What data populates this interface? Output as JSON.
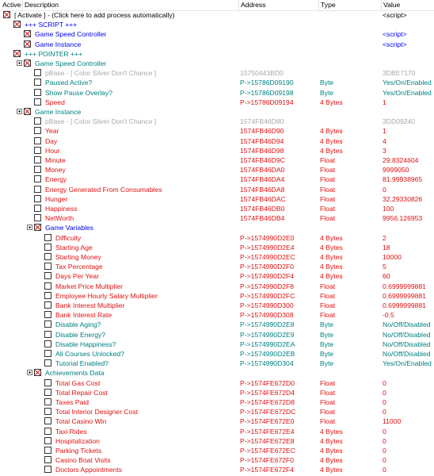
{
  "header": {
    "active": "Active",
    "description": "Description",
    "address": "Address",
    "type": "Type",
    "value": "Value"
  },
  "colors": {
    "red": "#e01010",
    "blue": "#0000ee",
    "teal": "#008080",
    "gray": "#a8a8a8",
    "black": "#000000"
  },
  "rows": [
    {
      "indent": 0,
      "checked": true,
      "expander": false,
      "desc": "[ Activate ] - (Click here to add process automatically)",
      "addr": "",
      "type": "",
      "value": "<script>",
      "color": "black"
    },
    {
      "indent": 1,
      "checked": true,
      "expander": false,
      "desc": "+++ SCRIPT +++",
      "addr": "",
      "type": "",
      "value": "",
      "color": "blue"
    },
    {
      "indent": 2,
      "checked": true,
      "expander": false,
      "desc": "Game Speed Controller",
      "addr": "",
      "type": "",
      "value": "<script>",
      "color": "blue"
    },
    {
      "indent": 2,
      "checked": true,
      "expander": false,
      "desc": "Game Instance",
      "addr": "",
      "type": "",
      "value": "<script>",
      "color": "blue"
    },
    {
      "indent": 1,
      "checked": true,
      "expander": false,
      "desc": "+++ POINTER +++",
      "addr": "",
      "type": "",
      "value": "",
      "color": "teal"
    },
    {
      "indent": 2,
      "checked": true,
      "expander": true,
      "desc": "Game Speed Controller",
      "addr": "",
      "type": "",
      "value": "",
      "color": "teal"
    },
    {
      "indent": 3,
      "checked": false,
      "expander": false,
      "desc": "pBase - [ Color Silver Don't Chance ]",
      "addr": "15750443BD0",
      "type": "",
      "value": "3DBE7170",
      "color": "gray"
    },
    {
      "indent": 3,
      "checked": false,
      "expander": false,
      "desc": "Paused Active?",
      "addr": "P->15786D09190",
      "type": "Byte",
      "value": "Yes/On/Enabled",
      "color": "teal"
    },
    {
      "indent": 3,
      "checked": false,
      "expander": false,
      "desc": "Show Pause Overlay?",
      "addr": "P->15786D09198",
      "type": "Byte",
      "value": "Yes/On/Enabled",
      "color": "teal"
    },
    {
      "indent": 3,
      "checked": false,
      "expander": false,
      "desc": "Speed",
      "addr": "P->15786D09194",
      "type": "4 Bytes",
      "value": "1",
      "color": "red"
    },
    {
      "indent": 2,
      "checked": true,
      "expander": true,
      "desc": "Game Instance",
      "addr": "",
      "type": "",
      "value": "",
      "color": "teal"
    },
    {
      "indent": 3,
      "checked": false,
      "expander": false,
      "desc": "pBase - [ Color Silver Don't Chance ]",
      "addr": "1574FB46D80",
      "type": "",
      "value": "3DD09240",
      "color": "gray"
    },
    {
      "indent": 3,
      "checked": false,
      "expander": false,
      "desc": "Year",
      "addr": "1574FB46D90",
      "type": "4 Bytes",
      "value": "1",
      "color": "red"
    },
    {
      "indent": 3,
      "checked": false,
      "expander": false,
      "desc": "Day",
      "addr": "1574FB46D94",
      "type": "4 Bytes",
      "value": "4",
      "color": "red"
    },
    {
      "indent": 3,
      "checked": false,
      "expander": false,
      "desc": "Hour",
      "addr": "1574FB46D98",
      "type": "4 Bytes",
      "value": "3",
      "color": "red"
    },
    {
      "indent": 3,
      "checked": false,
      "expander": false,
      "desc": "Minute",
      "addr": "1574FB46D9C",
      "type": "Float",
      "value": "29.8324604",
      "color": "red"
    },
    {
      "indent": 3,
      "checked": false,
      "expander": false,
      "desc": "Money",
      "addr": "1574FB46DA0",
      "type": "Float",
      "value": "9999050",
      "color": "red"
    },
    {
      "indent": 3,
      "checked": false,
      "expander": false,
      "desc": "Energy",
      "addr": "1574FB46DA4",
      "type": "Float",
      "value": "81.99938965",
      "color": "red"
    },
    {
      "indent": 3,
      "checked": false,
      "expander": false,
      "desc": "Energy Generated From Consumables",
      "addr": "1574FB46DA8",
      "type": "Float",
      "value": "0",
      "color": "red"
    },
    {
      "indent": 3,
      "checked": false,
      "expander": false,
      "desc": "Hunger",
      "addr": "1574FB46DAC",
      "type": "Float",
      "value": "32.29330826",
      "color": "red"
    },
    {
      "indent": 3,
      "checked": false,
      "expander": false,
      "desc": "Happiness",
      "addr": "1574FB46DB0",
      "type": "Float",
      "value": "100",
      "color": "red"
    },
    {
      "indent": 3,
      "checked": false,
      "expander": false,
      "desc": "NetWorth",
      "addr": "1574FB46DB4",
      "type": "Float",
      "value": "9956.126953",
      "color": "red"
    },
    {
      "indent": 3,
      "checked": true,
      "expander": true,
      "desc": "Game Variables",
      "addr": "",
      "type": "",
      "value": "",
      "color": "blue"
    },
    {
      "indent": 4,
      "checked": false,
      "expander": false,
      "desc": "Difficulty",
      "addr": "P->1574990D2E0",
      "type": "4 Bytes",
      "value": "2",
      "color": "red"
    },
    {
      "indent": 4,
      "checked": false,
      "expander": false,
      "desc": "Starting Age",
      "addr": "P->1574990D2E4",
      "type": "4 Bytes",
      "value": "18",
      "color": "red"
    },
    {
      "indent": 4,
      "checked": false,
      "expander": false,
      "desc": "Starting Money",
      "addr": "P->1574990D2EC",
      "type": "4 Bytes",
      "value": "10000",
      "color": "red"
    },
    {
      "indent": 4,
      "checked": false,
      "expander": false,
      "desc": "Tax Percentage",
      "addr": "P->1574990D2F0",
      "type": "4 Bytes",
      "value": "5",
      "color": "red"
    },
    {
      "indent": 4,
      "checked": false,
      "expander": false,
      "desc": "Days Per Year",
      "addr": "P->1574990D2F4",
      "type": "4 Bytes",
      "value": "60",
      "color": "red"
    },
    {
      "indent": 4,
      "checked": false,
      "expander": false,
      "desc": "Market Price Multiplier",
      "addr": "P->1574990D2F8",
      "type": "Float",
      "value": "0.6999999881",
      "color": "red"
    },
    {
      "indent": 4,
      "checked": false,
      "expander": false,
      "desc": "Employee Hourly Salary Multiplier",
      "addr": "P->1574990D2FC",
      "type": "Float",
      "value": "0.6999999881",
      "color": "red"
    },
    {
      "indent": 4,
      "checked": false,
      "expander": false,
      "desc": "Bank Interest Multiplier",
      "addr": "P->1574990D300",
      "type": "Float",
      "value": "0.6999999881",
      "color": "red"
    },
    {
      "indent": 4,
      "checked": false,
      "expander": false,
      "desc": "Bank Interest Rate",
      "addr": "P->1574990D308",
      "type": "Float",
      "value": "-0.5",
      "color": "red"
    },
    {
      "indent": 4,
      "checked": false,
      "expander": false,
      "desc": "Disable Aging?",
      "addr": "P->1574990D2E8",
      "type": "Byte",
      "value": "No/Off/Disabled",
      "color": "teal"
    },
    {
      "indent": 4,
      "checked": false,
      "expander": false,
      "desc": "Disable Energy?",
      "addr": "P->1574990D2E9",
      "type": "Byte",
      "value": "No/Off/Disabled",
      "color": "teal"
    },
    {
      "indent": 4,
      "checked": false,
      "expander": false,
      "desc": "Disable Happiness?",
      "addr": "P->1574990D2EA",
      "type": "Byte",
      "value": "No/Off/Disabled",
      "color": "teal"
    },
    {
      "indent": 4,
      "checked": false,
      "expander": false,
      "desc": "All Courses Unlocked?",
      "addr": "P->1574990D2EB",
      "type": "Byte",
      "value": "No/Off/Disabled",
      "color": "teal"
    },
    {
      "indent": 4,
      "checked": false,
      "expander": false,
      "desc": "Tutorial Enabled?",
      "addr": "P->1574990D304",
      "type": "Byte",
      "value": "Yes/On/Enabled",
      "color": "teal"
    },
    {
      "indent": 3,
      "checked": true,
      "expander": true,
      "desc": "Achievements Data",
      "addr": "",
      "type": "",
      "value": "",
      "color": "teal"
    },
    {
      "indent": 4,
      "checked": false,
      "expander": false,
      "desc": "Total Gas Cost",
      "addr": "P->1574FE672D0",
      "type": "Float",
      "value": "0",
      "color": "red"
    },
    {
      "indent": 4,
      "checked": false,
      "expander": false,
      "desc": "Total Repair Cost",
      "addr": "P->1574FE672D4",
      "type": "Float",
      "value": "0",
      "color": "red"
    },
    {
      "indent": 4,
      "checked": false,
      "expander": false,
      "desc": "Taxes Paid",
      "addr": "P->1574FE672D8",
      "type": "Float",
      "value": "0",
      "color": "red"
    },
    {
      "indent": 4,
      "checked": false,
      "expander": false,
      "desc": "Total Interior Designer Cost",
      "addr": "P->1574FE672DC",
      "type": "Float",
      "value": "0",
      "color": "red"
    },
    {
      "indent": 4,
      "checked": false,
      "expander": false,
      "desc": "Total Casino Win",
      "addr": "P->1574FE672E0",
      "type": "Float",
      "value": "11000",
      "color": "red"
    },
    {
      "indent": 4,
      "checked": false,
      "expander": false,
      "desc": "Taxi Rides",
      "addr": "P->1574FE672E4",
      "type": "4 Bytes",
      "value": "0",
      "color": "red"
    },
    {
      "indent": 4,
      "checked": false,
      "expander": false,
      "desc": "Hospitalization",
      "addr": "P->1574FE672E8",
      "type": "4 Bytes",
      "value": "0",
      "color": "red"
    },
    {
      "indent": 4,
      "checked": false,
      "expander": false,
      "desc": "Parking Tickets",
      "addr": "P->1574FE672EC",
      "type": "4 Bytes",
      "value": "0",
      "color": "red"
    },
    {
      "indent": 4,
      "checked": false,
      "expander": false,
      "desc": "Casino Boat Visits",
      "addr": "P->1574FE672F0",
      "type": "4 Bytes",
      "value": "0",
      "color": "red"
    },
    {
      "indent": 4,
      "checked": false,
      "expander": false,
      "desc": "Doctors Appointments",
      "addr": "P->1574FE672F4",
      "type": "4 Bytes",
      "value": "0",
      "color": "red"
    }
  ]
}
